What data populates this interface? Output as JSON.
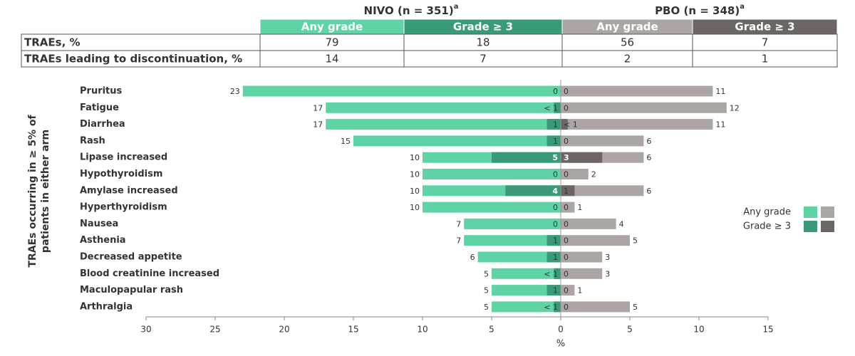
{
  "table": {
    "groups": [
      {
        "label": "NIVO (n = 351)",
        "note": "a"
      },
      {
        "label": "PBO (n = 348)",
        "note": "a"
      }
    ],
    "rows": [
      {
        "label": "TRAEs, %",
        "values": [
          79,
          18,
          56,
          7
        ]
      },
      {
        "label": "TRAEs leading to discontinuation, %",
        "values": [
          14,
          7,
          2,
          1
        ]
      }
    ]
  },
  "chart_data": {
    "type": "butterfly",
    "categories": [
      "Pruritus",
      "Fatigue",
      "Diarrhea",
      "Rash",
      "Lipase increased",
      "Hypothyroidism",
      "Amylase increased",
      "Hyperthyroidism",
      "Nausea",
      "Asthenia",
      "Decreased appetite",
      "Blood creatinine increased",
      "Maculopapular rash",
      "Arthralgia"
    ],
    "series": [
      {
        "name": "Any grade",
        "color": "#5fd3a6",
        "values": [
          23,
          17,
          17,
          15,
          10,
          10,
          10,
          10,
          7,
          7,
          6,
          5,
          5,
          5
        ]
      },
      {
        "name": "Grade ≥ 3",
        "color": "#3a9a78",
        "values": [
          0,
          0.5,
          1,
          1,
          5,
          0,
          4,
          0,
          0,
          1,
          1,
          0.5,
          1,
          0.5
        ],
        "value_labels": [
          "0",
          "< 1",
          "1",
          "1",
          "5",
          "0",
          "4",
          "0",
          "0",
          "1",
          "1",
          "< 1",
          "1",
          "< 1"
        ]
      },
      {
        "name": "Any grade",
        "color": "#aba6a3",
        "values": [
          11,
          12,
          11,
          6,
          6,
          2,
          6,
          1,
          4,
          5,
          3,
          3,
          1,
          5
        ]
      },
      {
        "name": "Grade ≥ 3",
        "color": "#6b6663",
        "values": [
          0,
          0,
          0.5,
          0,
          3,
          0,
          1,
          0,
          0,
          0,
          0,
          0,
          0,
          0
        ],
        "value_labels": [
          "0",
          "0",
          "< 1",
          "0",
          "3",
          "0",
          "1",
          "0",
          "0",
          "0",
          "0",
          "0",
          "0",
          "0"
        ]
      }
    ],
    "xlim": [
      -30,
      15
    ],
    "xticks": [
      {
        "value": -30,
        "label": "30"
      },
      {
        "value": -25,
        "label": "25"
      },
      {
        "value": -20,
        "label": "20"
      },
      {
        "value": -15,
        "label": "15"
      },
      {
        "value": -10,
        "label": "10"
      },
      {
        "value": -5,
        "label": "5"
      },
      0,
      5,
      10,
      15
    ],
    "xlabel": "%",
    "ylabel": [
      "TRAEs occurring in ≥ 5% of",
      "patients in either arm"
    ]
  }
}
